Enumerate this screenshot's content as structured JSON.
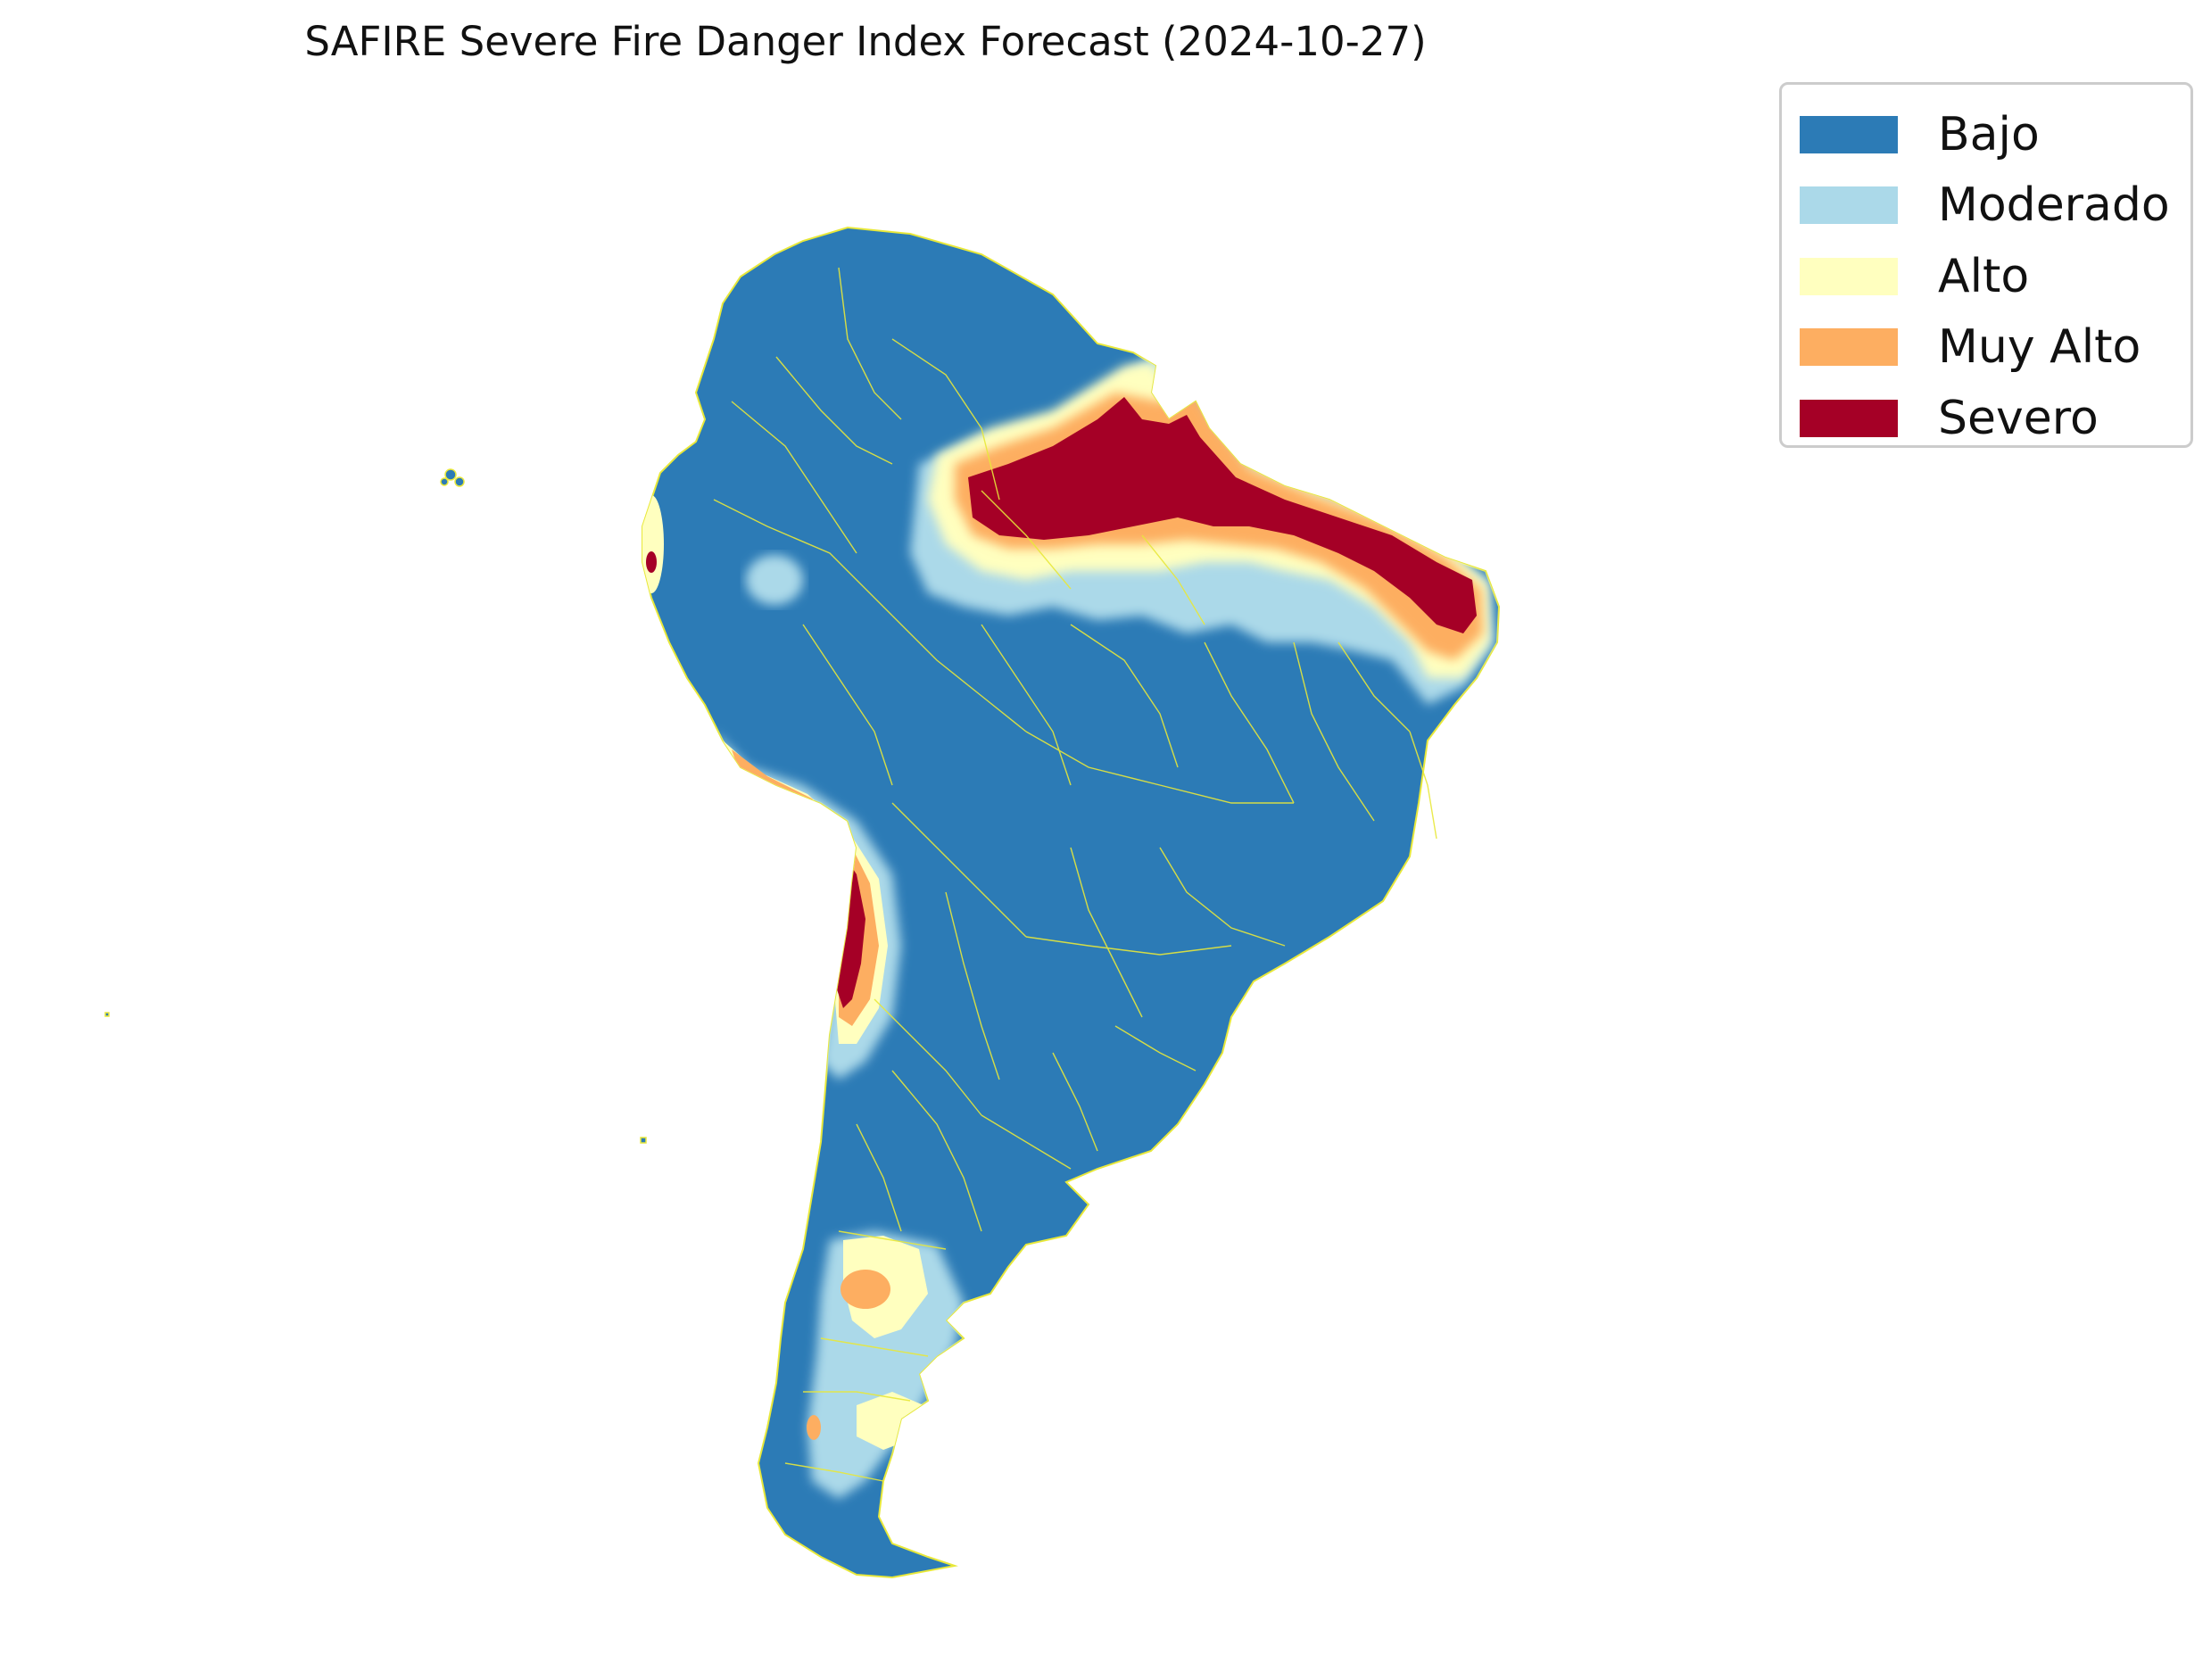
{
  "title": "SAFIRE Severe Fire Danger Index Forecast (2024-10-27)",
  "legend": [
    {
      "label": "Bajo",
      "color": "#2c7bb6"
    },
    {
      "label": "Moderado",
      "color": "#abd9e9"
    },
    {
      "label": "Alto",
      "color": "#ffffbf"
    },
    {
      "label": "Muy Alto",
      "color": "#fdae61"
    },
    {
      "label": "Severo",
      "color": "#a50026"
    }
  ],
  "map": {
    "region": "South America",
    "border_color": "#e8e83a"
  }
}
